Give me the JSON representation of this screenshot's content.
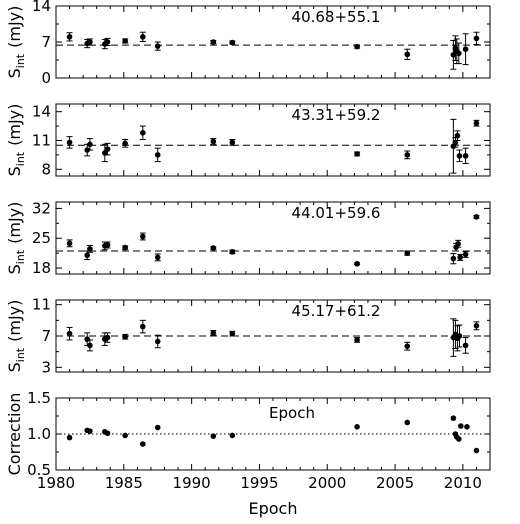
{
  "chart_data": [
    {
      "type": "scatter",
      "title": "40.68+55.1",
      "ylabel_main": "S",
      "ylabel_sub": "int",
      "ylabel_unit": "(mJy)",
      "ylim": [
        0,
        14
      ],
      "yticks": [
        "0",
        "7",
        "14"
      ],
      "reference_line": 6.4,
      "points": [
        {
          "x": 1981.0,
          "y": 8.0,
          "err": 0.8
        },
        {
          "x": 1982.3,
          "y": 6.7,
          "err": 0.8
        },
        {
          "x": 1982.5,
          "y": 7.0,
          "err": 0.6
        },
        {
          "x": 1983.6,
          "y": 6.6,
          "err": 0.9
        },
        {
          "x": 1983.8,
          "y": 7.0,
          "err": 0.7
        },
        {
          "x": 1985.1,
          "y": 7.2,
          "err": 0.4
        },
        {
          "x": 1986.4,
          "y": 8.0,
          "err": 0.9
        },
        {
          "x": 1987.5,
          "y": 6.2,
          "err": 0.8
        },
        {
          "x": 1991.6,
          "y": 7.0,
          "err": 0.3
        },
        {
          "x": 1993.0,
          "y": 6.9,
          "err": 0.3
        },
        {
          "x": 2002.2,
          "y": 6.1,
          "err": 0.3
        },
        {
          "x": 2005.9,
          "y": 4.6,
          "err": 1.0
        },
        {
          "x": 2009.3,
          "y": 4.5,
          "err": 2.8
        },
        {
          "x": 2009.45,
          "y": 5.8,
          "err": 2.4
        },
        {
          "x": 2009.55,
          "y": 5.2,
          "err": 2.4
        },
        {
          "x": 2009.7,
          "y": 4.8,
          "err": 2.0
        },
        {
          "x": 2010.2,
          "y": 5.6,
          "err": 3.0
        },
        {
          "x": 2011.0,
          "y": 7.7,
          "err": 1.2
        }
      ]
    },
    {
      "type": "scatter",
      "title": "43.31+59.2",
      "ylabel_main": "S",
      "ylabel_sub": "int",
      "ylabel_unit": "(mJy)",
      "ylim": [
        7.3,
        14.8
      ],
      "yticks": [
        "8",
        "11",
        "14"
      ],
      "reference_line": 10.5,
      "points": [
        {
          "x": 1981.0,
          "y": 10.8,
          "err": 0.6
        },
        {
          "x": 1982.3,
          "y": 10.0,
          "err": 0.6
        },
        {
          "x": 1982.5,
          "y": 10.6,
          "err": 0.6
        },
        {
          "x": 1983.6,
          "y": 9.7,
          "err": 0.9
        },
        {
          "x": 1983.8,
          "y": 10.1,
          "err": 0.6
        },
        {
          "x": 1985.1,
          "y": 10.7,
          "err": 0.4
        },
        {
          "x": 1986.4,
          "y": 11.8,
          "err": 0.7
        },
        {
          "x": 1987.5,
          "y": 9.5,
          "err": 0.7
        },
        {
          "x": 1991.6,
          "y": 10.9,
          "err": 0.3
        },
        {
          "x": 1993.0,
          "y": 10.8,
          "err": 0.3
        },
        {
          "x": 2002.2,
          "y": 9.6,
          "err": 0.2
        },
        {
          "x": 2005.9,
          "y": 9.5,
          "err": 0.4
        },
        {
          "x": 2009.3,
          "y": 10.4,
          "err": 2.8
        },
        {
          "x": 2009.45,
          "y": 10.8,
          "err": 0.5
        },
        {
          "x": 2009.6,
          "y": 11.5,
          "err": 0.5
        },
        {
          "x": 2009.75,
          "y": 9.4,
          "err": 0.6
        },
        {
          "x": 2010.2,
          "y": 9.4,
          "err": 0.8
        },
        {
          "x": 2011.0,
          "y": 12.8,
          "err": 0.3
        }
      ]
    },
    {
      "type": "scatter",
      "title": "44.01+59.6",
      "ylabel_main": "S",
      "ylabel_sub": "int",
      "ylabel_unit": "(mJy)",
      "ylim": [
        16.6,
        33.5
      ],
      "yticks": [
        "18",
        "25",
        "32"
      ],
      "reference_line": 22.0,
      "points": [
        {
          "x": 1981.0,
          "y": 23.8,
          "err": 0.8
        },
        {
          "x": 1982.3,
          "y": 21.0,
          "err": 1.0
        },
        {
          "x": 1982.5,
          "y": 22.5,
          "err": 0.8
        },
        {
          "x": 1983.6,
          "y": 23.2,
          "err": 0.9
        },
        {
          "x": 1983.8,
          "y": 23.4,
          "err": 0.7
        },
        {
          "x": 1985.1,
          "y": 22.8,
          "err": 0.4
        },
        {
          "x": 1986.4,
          "y": 25.4,
          "err": 0.8
        },
        {
          "x": 1987.5,
          "y": 20.5,
          "err": 0.8
        },
        {
          "x": 1991.6,
          "y": 22.7,
          "err": 0.3
        },
        {
          "x": 1993.0,
          "y": 21.8,
          "err": 0.4
        },
        {
          "x": 2002.2,
          "y": 19.0,
          "err": 0.2
        },
        {
          "x": 2005.9,
          "y": 21.5,
          "err": 0.5
        },
        {
          "x": 2009.3,
          "y": 20.2,
          "err": 1.2
        },
        {
          "x": 2009.5,
          "y": 22.9,
          "err": 0.9
        },
        {
          "x": 2009.65,
          "y": 23.7,
          "err": 0.8
        },
        {
          "x": 2009.8,
          "y": 20.5,
          "err": 0.7
        },
        {
          "x": 2010.2,
          "y": 21.2,
          "err": 0.7
        },
        {
          "x": 2011.0,
          "y": 30.0,
          "err": 0.3
        }
      ]
    },
    {
      "type": "scatter",
      "title": "45.17+61.2",
      "ylabel_main": "S",
      "ylabel_sub": "int",
      "ylabel_unit": "(mJy)",
      "ylim": [
        2.4,
        11.6
      ],
      "yticks": [
        "3",
        "7",
        "11"
      ],
      "reference_line": 7.0,
      "points": [
        {
          "x": 1981.0,
          "y": 7.3,
          "err": 0.8
        },
        {
          "x": 1982.3,
          "y": 6.6,
          "err": 0.8
        },
        {
          "x": 1982.5,
          "y": 5.8,
          "err": 0.7
        },
        {
          "x": 1983.6,
          "y": 6.6,
          "err": 0.8
        },
        {
          "x": 1983.8,
          "y": 6.8,
          "err": 0.6
        },
        {
          "x": 1985.1,
          "y": 6.9,
          "err": 0.3
        },
        {
          "x": 1986.4,
          "y": 8.2,
          "err": 0.8
        },
        {
          "x": 1987.5,
          "y": 6.3,
          "err": 0.8
        },
        {
          "x": 1991.6,
          "y": 7.4,
          "err": 0.3
        },
        {
          "x": 1993.0,
          "y": 7.3,
          "err": 0.3
        },
        {
          "x": 2002.2,
          "y": 6.5,
          "err": 0.3
        },
        {
          "x": 2005.9,
          "y": 5.7,
          "err": 0.5
        },
        {
          "x": 2009.3,
          "y": 6.8,
          "err": 2.4
        },
        {
          "x": 2009.45,
          "y": 7.2,
          "err": 1.8
        },
        {
          "x": 2009.6,
          "y": 6.7,
          "err": 1.6
        },
        {
          "x": 2009.75,
          "y": 7.0,
          "err": 1.4
        },
        {
          "x": 2010.2,
          "y": 5.8,
          "err": 1.0
        },
        {
          "x": 2011.0,
          "y": 8.3,
          "err": 0.5
        }
      ]
    },
    {
      "type": "scatter",
      "title": "Epoch",
      "ylabel": "Correction",
      "xlabel": "Epoch",
      "ylim": [
        0.5,
        1.5
      ],
      "yticks": [
        "0.5",
        "1.0",
        "1.5"
      ],
      "xlim": [
        1980,
        2012
      ],
      "xticks": [
        "1980",
        "1985",
        "1990",
        "1995",
        "2000",
        "2005",
        "2010"
      ],
      "reference_line": 1.0,
      "points": [
        {
          "x": 1981.0,
          "y": 0.95
        },
        {
          "x": 1982.3,
          "y": 1.05
        },
        {
          "x": 1982.5,
          "y": 1.04
        },
        {
          "x": 1983.6,
          "y": 1.03
        },
        {
          "x": 1983.8,
          "y": 1.01
        },
        {
          "x": 1985.1,
          "y": 0.98
        },
        {
          "x": 1986.4,
          "y": 0.86
        },
        {
          "x": 1987.5,
          "y": 1.09
        },
        {
          "x": 1991.6,
          "y": 0.97
        },
        {
          "x": 1993.0,
          "y": 0.98
        },
        {
          "x": 2002.2,
          "y": 1.1
        },
        {
          "x": 2005.9,
          "y": 1.16
        },
        {
          "x": 2009.3,
          "y": 1.22
        },
        {
          "x": 2009.45,
          "y": 1.0
        },
        {
          "x": 2009.55,
          "y": 0.96
        },
        {
          "x": 2009.7,
          "y": 0.93
        },
        {
          "x": 2009.85,
          "y": 1.11
        },
        {
          "x": 2010.3,
          "y": 1.1
        },
        {
          "x": 2011.0,
          "y": 0.77
        }
      ]
    }
  ]
}
